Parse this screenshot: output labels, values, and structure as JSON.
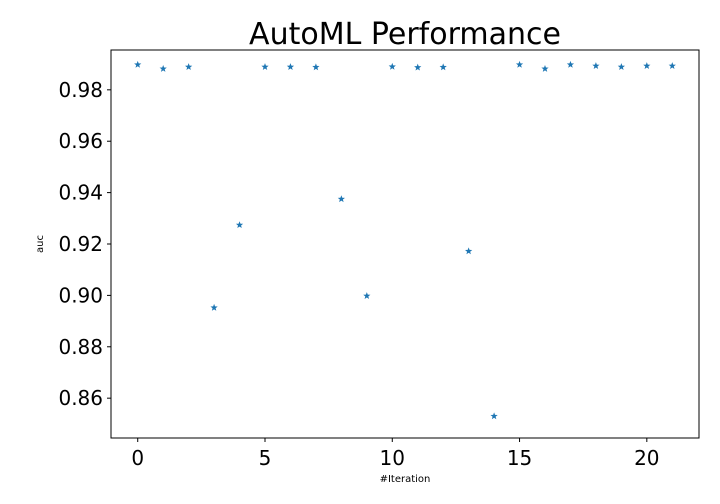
{
  "chart_data": {
    "type": "scatter",
    "title": "AutoML Performance",
    "xlabel": "#Iteration",
    "ylabel": "auc",
    "xlim": [
      -1.05,
      22.05
    ],
    "ylim": [
      0.8445,
      0.9955
    ],
    "xticks": [
      0,
      5,
      10,
      15,
      20
    ],
    "yticks": [
      0.86,
      0.88,
      0.9,
      0.92,
      0.94,
      0.96,
      0.98
    ],
    "ytick_labels": [
      "0.86",
      "0.88",
      "0.90",
      "0.92",
      "0.94",
      "0.96",
      "0.98"
    ],
    "grid": false,
    "marker": "star",
    "marker_color": "#1f77b4",
    "series": [
      {
        "x": [
          0,
          1,
          2,
          3,
          4,
          5,
          6,
          7,
          8,
          9,
          10,
          11,
          12,
          13,
          14,
          15,
          16,
          17,
          18,
          19,
          20,
          21
        ],
        "values": [
          0.9898,
          0.9882,
          0.9889,
          0.8952,
          0.9274,
          0.9889,
          0.9889,
          0.9888,
          0.9375,
          0.8998,
          0.989,
          0.9887,
          0.9888,
          0.9172,
          0.853,
          0.9898,
          0.9882,
          0.9898,
          0.9893,
          0.9889,
          0.9893,
          0.9893
        ]
      }
    ]
  }
}
